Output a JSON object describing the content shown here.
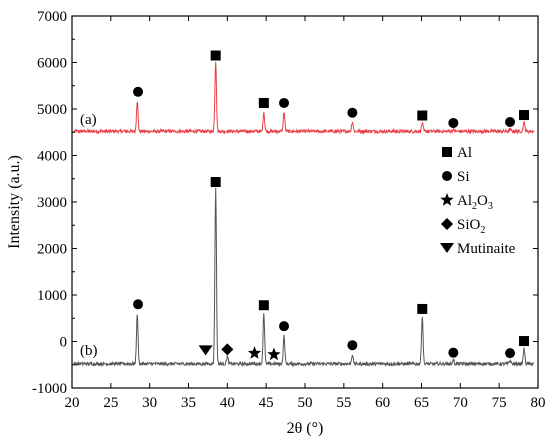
{
  "chart_data": {
    "type": "line",
    "xlabel": "2θ (°)",
    "ylabel": "Intensity (a.u.)",
    "xlim": [
      20,
      80
    ],
    "ylim": [
      -1000,
      7000
    ],
    "xticks": [
      20,
      25,
      30,
      35,
      40,
      45,
      50,
      55,
      60,
      65,
      70,
      75,
      80
    ],
    "yticks": [
      -1000,
      0,
      1000,
      2000,
      3000,
      4000,
      5000,
      6000,
      7000
    ],
    "grid": false,
    "legend_position": "right",
    "series": [
      {
        "name": "(a)",
        "color": "#e8404a",
        "baseline": 4520,
        "peaks": [
          {
            "x": 28.4,
            "y": 5180
          },
          {
            "x": 38.5,
            "y": 6030
          },
          {
            "x": 44.7,
            "y": 4940
          },
          {
            "x": 47.3,
            "y": 4940
          },
          {
            "x": 56.1,
            "y": 4730
          },
          {
            "x": 65.1,
            "y": 4700
          },
          {
            "x": 69.1,
            "y": 4560
          },
          {
            "x": 76.4,
            "y": 4560
          },
          {
            "x": 78.2,
            "y": 4720
          }
        ]
      },
      {
        "name": "(b)",
        "color": "#555555",
        "baseline": -480,
        "peaks": [
          {
            "x": 28.4,
            "y": 600
          },
          {
            "x": 38.5,
            "y": 3280
          },
          {
            "x": 40.0,
            "y": -320
          },
          {
            "x": 44.7,
            "y": 620
          },
          {
            "x": 47.3,
            "y": 120
          },
          {
            "x": 56.1,
            "y": -280
          },
          {
            "x": 65.1,
            "y": 540
          },
          {
            "x": 69.1,
            "y": -400
          },
          {
            "x": 76.4,
            "y": -400
          },
          {
            "x": 78.2,
            "y": -150
          }
        ]
      }
    ],
    "markers": [
      {
        "symbol": "circle",
        "x": 28.5,
        "y": 5370
      },
      {
        "symbol": "square",
        "x": 38.5,
        "y": 6150
      },
      {
        "symbol": "square",
        "x": 44.7,
        "y": 5130
      },
      {
        "symbol": "circle",
        "x": 47.3,
        "y": 5130
      },
      {
        "symbol": "circle",
        "x": 56.1,
        "y": 4920
      },
      {
        "symbol": "square",
        "x": 65.1,
        "y": 4860
      },
      {
        "symbol": "circle",
        "x": 69.1,
        "y": 4700
      },
      {
        "symbol": "circle",
        "x": 76.4,
        "y": 4720
      },
      {
        "symbol": "square",
        "x": 78.2,
        "y": 4870
      },
      {
        "symbol": "square",
        "x": 38.5,
        "y": 3430
      },
      {
        "symbol": "circle",
        "x": 28.5,
        "y": 800
      },
      {
        "symbol": "square",
        "x": 44.7,
        "y": 780
      },
      {
        "symbol": "circle",
        "x": 47.3,
        "y": 330
      },
      {
        "symbol": "circle",
        "x": 56.1,
        "y": -80
      },
      {
        "symbol": "square",
        "x": 65.1,
        "y": 700
      },
      {
        "symbol": "circle",
        "x": 69.1,
        "y": -240
      },
      {
        "symbol": "circle",
        "x": 76.4,
        "y": -250
      },
      {
        "symbol": "square",
        "x": 78.2,
        "y": 10
      },
      {
        "symbol": "triangle-down",
        "x": 37.2,
        "y": -190
      },
      {
        "symbol": "diamond",
        "x": 40.0,
        "y": -170
      },
      {
        "symbol": "star",
        "x": 43.5,
        "y": -250
      },
      {
        "symbol": "star",
        "x": 46.0,
        "y": -280
      }
    ],
    "legend": [
      {
        "symbol": "square",
        "label": "Al"
      },
      {
        "symbol": "circle",
        "label": "Si"
      },
      {
        "symbol": "star",
        "label": "Al",
        "sub": "2",
        "label2": "O",
        "sub2": "3"
      },
      {
        "symbol": "diamond",
        "label": "SiO",
        "sub": "2"
      },
      {
        "symbol": "triangle-down",
        "label": "Mutinaite"
      }
    ]
  }
}
